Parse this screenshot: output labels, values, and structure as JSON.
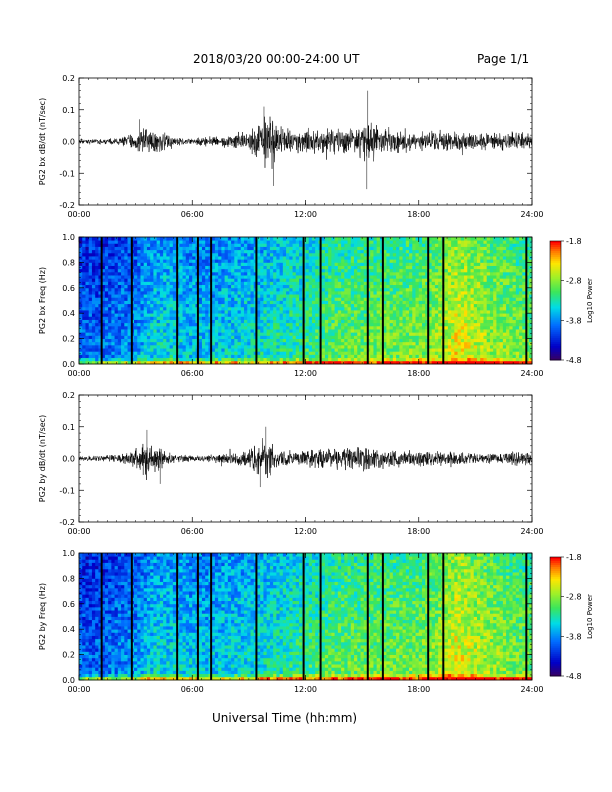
{
  "header": {
    "title": "2018/03/20  00:00-24:00 UT",
    "page": "Page 1/1"
  },
  "xlabel": "Universal Time (hh:mm)",
  "colorbar": {
    "label": "Log10 Power",
    "ticks": [
      "-1.8",
      "-2.8",
      "-3.8",
      "-4.8"
    ],
    "range": [
      -4.8,
      -1.8
    ]
  },
  "chart_data": [
    {
      "type": "line",
      "ylabel": "PG2 bx dB/dt (nT/sec)",
      "xlim": [
        0,
        24
      ],
      "ylim": [
        -0.2,
        0.2
      ],
      "x_ticks": [
        "00:00",
        "06:00",
        "12:00",
        "18:00",
        "24:00"
      ],
      "y_ticks": [
        "0.2",
        "0.1",
        "0.0",
        "-0.1",
        "-0.2"
      ],
      "envelope": {
        "hours": [
          0,
          1,
          2,
          3,
          3.5,
          4,
          4.5,
          5,
          6,
          7,
          8,
          9,
          9.5,
          10,
          10.5,
          11,
          12,
          13,
          14,
          15,
          15.5,
          16,
          17,
          18,
          19,
          20,
          21,
          22,
          23,
          24
        ],
        "amplitude": [
          0.01,
          0.01,
          0.012,
          0.03,
          0.055,
          0.045,
          0.03,
          0.015,
          0.012,
          0.02,
          0.025,
          0.04,
          0.07,
          0.11,
          0.06,
          0.05,
          0.04,
          0.045,
          0.045,
          0.06,
          0.08,
          0.05,
          0.045,
          0.04,
          0.035,
          0.035,
          0.03,
          0.03,
          0.035,
          0.03
        ]
      },
      "peaks": [
        {
          "x": 9.8,
          "y": 0.11
        },
        {
          "x": 10.3,
          "y": -0.14
        },
        {
          "x": 15.3,
          "y": 0.16
        },
        {
          "x": 15.25,
          "y": -0.15
        },
        {
          "x": 3.2,
          "y": 0.07
        }
      ]
    },
    {
      "type": "heatmap",
      "ylabel": "PG2 bx Freq (Hz)",
      "xlim": [
        0,
        24
      ],
      "ylim": [
        0,
        1.0
      ],
      "x_ticks": [
        "00:00",
        "06:00",
        "12:00",
        "18:00",
        "24:00"
      ],
      "y_ticks": [
        "1.0",
        "0.8",
        "0.6",
        "0.4",
        "0.2",
        "0.0"
      ],
      "value_range": [
        -4.8,
        -1.8
      ],
      "level_by_hour": [
        -3.9,
        -3.9,
        -3.8,
        -3.7,
        -3.4,
        -3.4,
        -3.5,
        -3.5,
        -3.4,
        -3.4,
        -3.3,
        -3.2,
        -3.1,
        -3.0,
        -2.9,
        -2.9,
        -2.85,
        -2.85,
        -2.8,
        -2.7,
        -2.4,
        -2.55,
        -2.7,
        -2.8,
        -2.9
      ],
      "gaps_hours": [
        1.2,
        2.8,
        5.2,
        6.3,
        7.0,
        9.4,
        11.9,
        12.8,
        15.3,
        16.1,
        18.5,
        19.3,
        23.7
      ]
    },
    {
      "type": "line",
      "ylabel": "PG2 by dB/dt (nT/sec)",
      "xlim": [
        0,
        24
      ],
      "ylim": [
        -0.2,
        0.2
      ],
      "x_ticks": [
        "00:00",
        "06:00",
        "12:00",
        "18:00",
        "24:00"
      ],
      "y_ticks": [
        "0.2",
        "0.1",
        "0.0",
        "-0.1",
        "-0.2"
      ],
      "envelope": {
        "hours": [
          0,
          1,
          2,
          3,
          3.5,
          4,
          4.5,
          5,
          6,
          7,
          8,
          9,
          9.5,
          10,
          10.5,
          11,
          12,
          13,
          14,
          15,
          15.5,
          16,
          17,
          18,
          19,
          20,
          21,
          22,
          23,
          24
        ],
        "amplitude": [
          0.008,
          0.01,
          0.012,
          0.035,
          0.06,
          0.05,
          0.03,
          0.015,
          0.012,
          0.015,
          0.02,
          0.035,
          0.06,
          0.075,
          0.04,
          0.03,
          0.03,
          0.035,
          0.04,
          0.045,
          0.045,
          0.035,
          0.03,
          0.03,
          0.025,
          0.025,
          0.02,
          0.02,
          0.025,
          0.025
        ]
      },
      "peaks": [
        {
          "x": 3.6,
          "y": 0.09
        },
        {
          "x": 4.3,
          "y": -0.08
        },
        {
          "x": 9.9,
          "y": 0.1
        },
        {
          "x": 9.6,
          "y": -0.09
        }
      ]
    },
    {
      "type": "heatmap",
      "ylabel": "PG2 by Freq (Hz)",
      "xlim": [
        0,
        24
      ],
      "ylim": [
        0,
        1.0
      ],
      "x_ticks": [
        "00:00",
        "06:00",
        "12:00",
        "18:00",
        "24:00"
      ],
      "y_ticks": [
        "1.0",
        "0.8",
        "0.6",
        "0.4",
        "0.2",
        "0.0"
      ],
      "value_range": [
        -4.8,
        -1.8
      ],
      "level_by_hour": [
        -3.9,
        -3.9,
        -3.8,
        -3.7,
        -3.4,
        -3.4,
        -3.5,
        -3.5,
        -3.4,
        -3.4,
        -3.3,
        -3.2,
        -3.1,
        -3.0,
        -2.9,
        -2.9,
        -2.85,
        -2.85,
        -2.8,
        -2.7,
        -2.4,
        -2.55,
        -2.7,
        -2.8,
        -2.9
      ],
      "gaps_hours": [
        1.2,
        2.8,
        5.2,
        6.3,
        7.0,
        9.4,
        11.9,
        12.8,
        15.3,
        16.1,
        18.5,
        19.3,
        23.7
      ]
    }
  ]
}
